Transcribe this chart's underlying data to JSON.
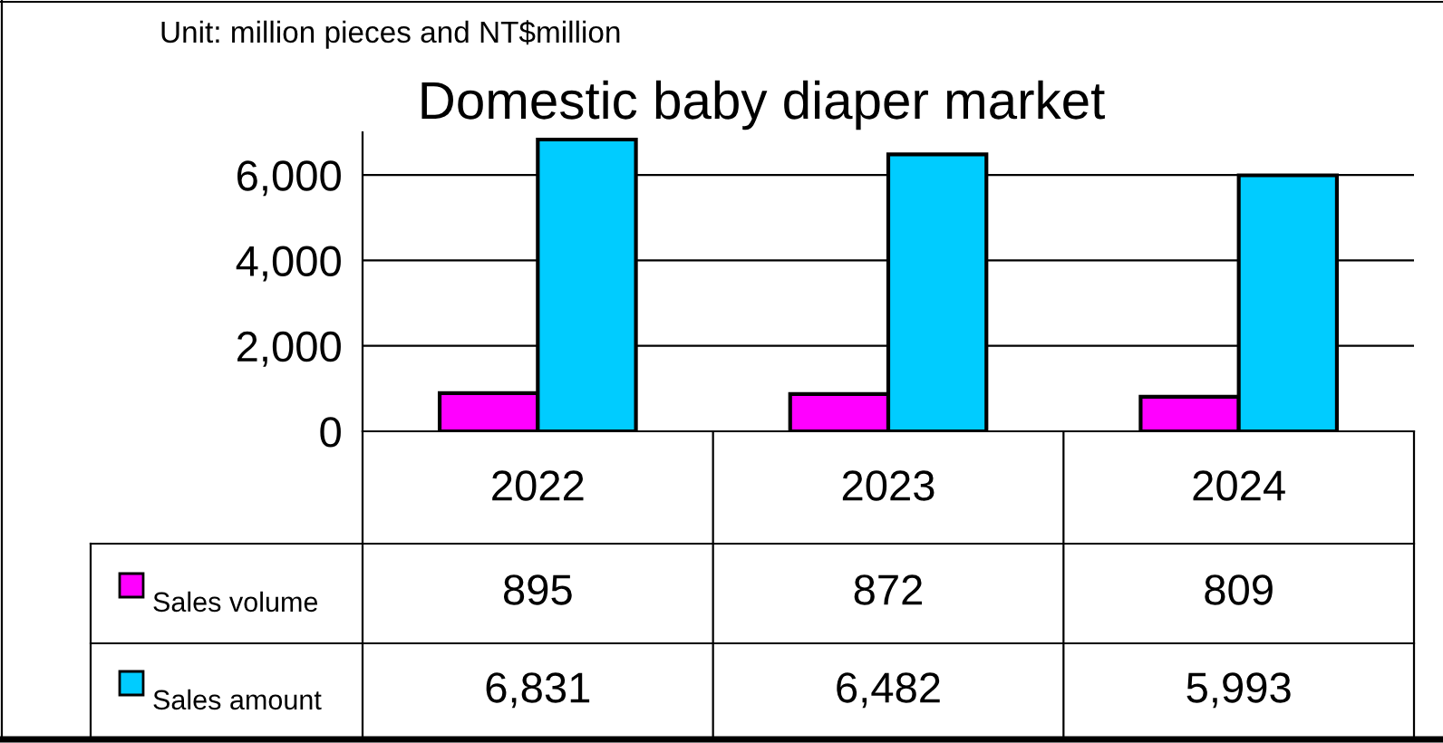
{
  "chart_data": {
    "type": "bar",
    "title": "Domestic baby diaper market",
    "annotations": [
      "Unit: million pieces and NT$million"
    ],
    "categories": [
      "2022",
      "2023",
      "2024"
    ],
    "series": [
      {
        "name": "Sales volume",
        "color": "#ff00ff",
        "values": [
          895,
          872,
          809
        ],
        "value_labels": [
          "895",
          "872",
          "809"
        ]
      },
      {
        "name": "Sales amount",
        "color": "#00ccff",
        "values": [
          6831,
          6482,
          5993
        ],
        "value_labels": [
          "6,831",
          "6,482",
          "5,993"
        ]
      }
    ],
    "ylim": [
      0,
      7000
    ],
    "yticks": [
      {
        "value": 0,
        "label": "0"
      },
      {
        "value": 2000,
        "label": "2,000"
      },
      {
        "value": 4000,
        "label": "4,000"
      },
      {
        "value": 6000,
        "label": "6,000"
      }
    ],
    "grid": "y",
    "legend": "left"
  }
}
